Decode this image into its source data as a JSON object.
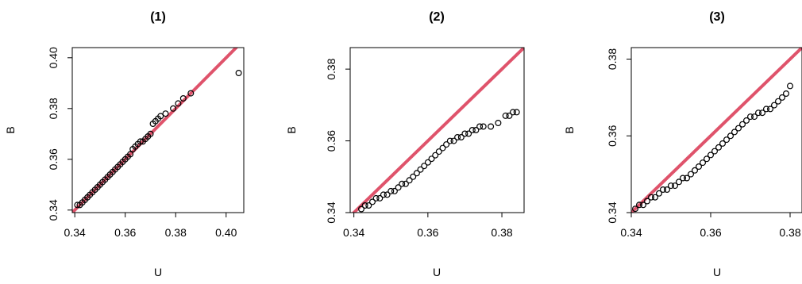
{
  "chart_data": [
    {
      "type": "scatter",
      "title": "(1)",
      "xlabel": "U",
      "ylabel": "B",
      "xlim": [
        0.339,
        0.407
      ],
      "ylim": [
        0.339,
        0.404
      ],
      "xticks": [
        0.34,
        0.36,
        0.38,
        0.4
      ],
      "yticks": [
        0.34,
        0.36,
        0.38,
        0.4
      ],
      "xtick_labels": [
        "0.34",
        "0.36",
        "0.38",
        "0.40"
      ],
      "ytick_labels": [
        "0.34",
        "0.36",
        "0.38",
        "0.40"
      ],
      "reference_line": {
        "slope": 1,
        "intercept": 0,
        "color": "#DF536B"
      },
      "grid": false,
      "series": [
        {
          "points": [
            [
              0.341,
              0.342
            ],
            [
              0.342,
              0.342
            ],
            [
              0.343,
              0.343
            ],
            [
              0.344,
              0.344
            ],
            [
              0.345,
              0.345
            ],
            [
              0.346,
              0.346
            ],
            [
              0.347,
              0.347
            ],
            [
              0.348,
              0.348
            ],
            [
              0.349,
              0.349
            ],
            [
              0.35,
              0.35
            ],
            [
              0.351,
              0.351
            ],
            [
              0.352,
              0.352
            ],
            [
              0.353,
              0.353
            ],
            [
              0.354,
              0.354
            ],
            [
              0.355,
              0.355
            ],
            [
              0.356,
              0.356
            ],
            [
              0.357,
              0.357
            ],
            [
              0.358,
              0.358
            ],
            [
              0.359,
              0.359
            ],
            [
              0.36,
              0.36
            ],
            [
              0.361,
              0.361
            ],
            [
              0.362,
              0.362
            ],
            [
              0.363,
              0.364
            ],
            [
              0.364,
              0.365
            ],
            [
              0.365,
              0.366
            ],
            [
              0.366,
              0.367
            ],
            [
              0.367,
              0.367
            ],
            [
              0.368,
              0.368
            ],
            [
              0.369,
              0.369
            ],
            [
              0.37,
              0.37
            ],
            [
              0.371,
              0.374
            ],
            [
              0.372,
              0.375
            ],
            [
              0.373,
              0.376
            ],
            [
              0.374,
              0.377
            ],
            [
              0.376,
              0.378
            ],
            [
              0.379,
              0.38
            ],
            [
              0.381,
              0.382
            ],
            [
              0.383,
              0.384
            ],
            [
              0.386,
              0.386
            ],
            [
              0.405,
              0.394
            ]
          ]
        }
      ]
    },
    {
      "type": "scatter",
      "title": "(2)",
      "xlabel": "U",
      "ylabel": "B",
      "xlim": [
        0.339,
        0.386
      ],
      "ylim": [
        0.34,
        0.386
      ],
      "xticks": [
        0.34,
        0.36,
        0.38
      ],
      "yticks": [
        0.34,
        0.36,
        0.38
      ],
      "xtick_labels": [
        "0.34",
        "0.36",
        "0.38"
      ],
      "ytick_labels": [
        "0.34",
        "0.36",
        "0.38"
      ],
      "reference_line": {
        "slope": 1,
        "intercept": 0,
        "color": "#DF536B"
      },
      "grid": false,
      "series": [
        {
          "points": [
            [
              0.342,
              0.341
            ],
            [
              0.343,
              0.342
            ],
            [
              0.344,
              0.342
            ],
            [
              0.345,
              0.343
            ],
            [
              0.346,
              0.344
            ],
            [
              0.347,
              0.344
            ],
            [
              0.348,
              0.345
            ],
            [
              0.349,
              0.345
            ],
            [
              0.35,
              0.346
            ],
            [
              0.351,
              0.346
            ],
            [
              0.352,
              0.347
            ],
            [
              0.353,
              0.348
            ],
            [
              0.354,
              0.348
            ],
            [
              0.355,
              0.349
            ],
            [
              0.356,
              0.35
            ],
            [
              0.357,
              0.351
            ],
            [
              0.358,
              0.352
            ],
            [
              0.359,
              0.353
            ],
            [
              0.36,
              0.354
            ],
            [
              0.361,
              0.355
            ],
            [
              0.362,
              0.356
            ],
            [
              0.363,
              0.357
            ],
            [
              0.364,
              0.358
            ],
            [
              0.365,
              0.359
            ],
            [
              0.366,
              0.36
            ],
            [
              0.367,
              0.36
            ],
            [
              0.368,
              0.361
            ],
            [
              0.369,
              0.361
            ],
            [
              0.37,
              0.362
            ],
            [
              0.371,
              0.362
            ],
            [
              0.372,
              0.363
            ],
            [
              0.373,
              0.363
            ],
            [
              0.374,
              0.364
            ],
            [
              0.375,
              0.364
            ],
            [
              0.377,
              0.364
            ],
            [
              0.379,
              0.365
            ],
            [
              0.381,
              0.367
            ],
            [
              0.382,
              0.367
            ],
            [
              0.383,
              0.368
            ],
            [
              0.384,
              0.368
            ]
          ]
        }
      ]
    },
    {
      "type": "scatter",
      "title": "(3)",
      "xlabel": "U",
      "ylabel": "B",
      "xlim": [
        0.34,
        0.383
      ],
      "ylim": [
        0.34,
        0.383
      ],
      "xticks": [
        0.34,
        0.36,
        0.38
      ],
      "yticks": [
        0.34,
        0.36,
        0.38
      ],
      "xtick_labels": [
        "0.34",
        "0.36",
        "0.38"
      ],
      "ytick_labels": [
        "0.34",
        "0.36",
        "0.38"
      ],
      "reference_line": {
        "slope": 1,
        "intercept": 0,
        "color": "#DF536B"
      },
      "grid": false,
      "series": [
        {
          "points": [
            [
              0.341,
              0.341
            ],
            [
              0.342,
              0.342
            ],
            [
              0.343,
              0.342
            ],
            [
              0.344,
              0.343
            ],
            [
              0.345,
              0.344
            ],
            [
              0.346,
              0.344
            ],
            [
              0.347,
              0.345
            ],
            [
              0.348,
              0.346
            ],
            [
              0.349,
              0.346
            ],
            [
              0.35,
              0.347
            ],
            [
              0.351,
              0.347
            ],
            [
              0.352,
              0.348
            ],
            [
              0.353,
              0.349
            ],
            [
              0.354,
              0.349
            ],
            [
              0.355,
              0.35
            ],
            [
              0.356,
              0.351
            ],
            [
              0.357,
              0.352
            ],
            [
              0.358,
              0.353
            ],
            [
              0.359,
              0.354
            ],
            [
              0.36,
              0.355
            ],
            [
              0.361,
              0.356
            ],
            [
              0.362,
              0.357
            ],
            [
              0.363,
              0.358
            ],
            [
              0.364,
              0.359
            ],
            [
              0.365,
              0.36
            ],
            [
              0.366,
              0.361
            ],
            [
              0.367,
              0.362
            ],
            [
              0.368,
              0.363
            ],
            [
              0.369,
              0.364
            ],
            [
              0.37,
              0.365
            ],
            [
              0.371,
              0.365
            ],
            [
              0.372,
              0.366
            ],
            [
              0.373,
              0.366
            ],
            [
              0.374,
              0.367
            ],
            [
              0.375,
              0.367
            ],
            [
              0.376,
              0.368
            ],
            [
              0.377,
              0.369
            ],
            [
              0.378,
              0.37
            ],
            [
              0.379,
              0.371
            ],
            [
              0.38,
              0.373
            ]
          ]
        }
      ]
    }
  ]
}
